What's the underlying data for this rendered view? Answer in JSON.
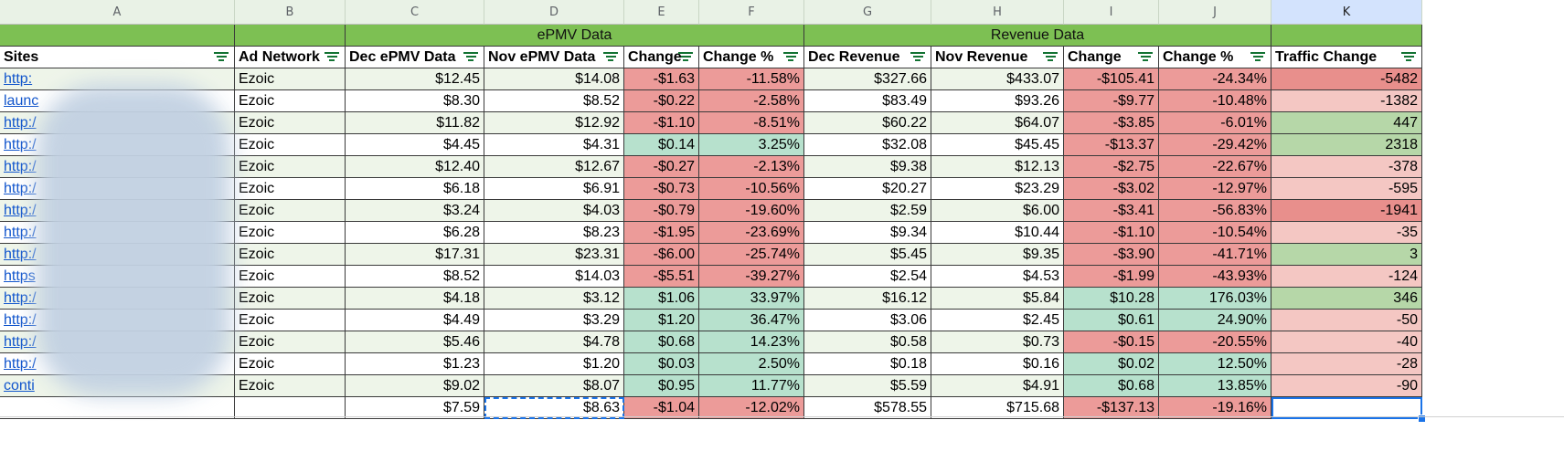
{
  "columns": [
    "A",
    "B",
    "C",
    "D",
    "E",
    "F",
    "G",
    "H",
    "I",
    "J",
    "K"
  ],
  "group_headers": {
    "epmv": "ePMV Data",
    "revenue": "Revenue Data"
  },
  "headers": [
    "Sites",
    "Ad Network",
    "Dec ePMV Data",
    "Nov ePMV Data",
    "Change",
    "Change %",
    "Dec Revenue",
    "Nov Revenue",
    "Change",
    "Change %",
    "Traffic Change"
  ],
  "rows": [
    {
      "site": "http:",
      "network": "Ezoic",
      "dec_epmv": "$12.45",
      "nov_epmv": "$14.08",
      "change": "-$1.63",
      "change_pct": "-11.58%",
      "dec_rev": "$327.66",
      "nov_rev": "$433.07",
      "rev_change": "-$105.41",
      "rev_change_pct": "-24.34%",
      "traffic": "-5482"
    },
    {
      "site": "launc",
      "network": "Ezoic",
      "dec_epmv": "$8.30",
      "nov_epmv": "$8.52",
      "change": "-$0.22",
      "change_pct": "-2.58%",
      "dec_rev": "$83.49",
      "nov_rev": "$93.26",
      "rev_change": "-$9.77",
      "rev_change_pct": "-10.48%",
      "traffic": "-1382"
    },
    {
      "site": "http:/",
      "network": "Ezoic",
      "dec_epmv": "$11.82",
      "nov_epmv": "$12.92",
      "change": "-$1.10",
      "change_pct": "-8.51%",
      "dec_rev": "$60.22",
      "nov_rev": "$64.07",
      "rev_change": "-$3.85",
      "rev_change_pct": "-6.01%",
      "traffic": "447"
    },
    {
      "site": "http:/",
      "network": "Ezoic",
      "dec_epmv": "$4.45",
      "nov_epmv": "$4.31",
      "change": "$0.14",
      "change_pct": "3.25%",
      "dec_rev": "$32.08",
      "nov_rev": "$45.45",
      "rev_change": "-$13.37",
      "rev_change_pct": "-29.42%",
      "traffic": "2318"
    },
    {
      "site": "http:/",
      "network": "Ezoic",
      "dec_epmv": "$12.40",
      "nov_epmv": "$12.67",
      "change": "-$0.27",
      "change_pct": "-2.13%",
      "dec_rev": "$9.38",
      "nov_rev": "$12.13",
      "rev_change": "-$2.75",
      "rev_change_pct": "-22.67%",
      "traffic": "-378"
    },
    {
      "site": "http:/",
      "network": "Ezoic",
      "dec_epmv": "$6.18",
      "nov_epmv": "$6.91",
      "change": "-$0.73",
      "change_pct": "-10.56%",
      "dec_rev": "$20.27",
      "nov_rev": "$23.29",
      "rev_change": "-$3.02",
      "rev_change_pct": "-12.97%",
      "traffic": "-595"
    },
    {
      "site": "http:/",
      "network": "Ezoic",
      "dec_epmv": "$3.24",
      "nov_epmv": "$4.03",
      "change": "-$0.79",
      "change_pct": "-19.60%",
      "dec_rev": "$2.59",
      "nov_rev": "$6.00",
      "rev_change": "-$3.41",
      "rev_change_pct": "-56.83%",
      "traffic": "-1941"
    },
    {
      "site": "http:/",
      "network": "Ezoic",
      "dec_epmv": "$6.28",
      "nov_epmv": "$8.23",
      "change": "-$1.95",
      "change_pct": "-23.69%",
      "dec_rev": "$9.34",
      "nov_rev": "$10.44",
      "rev_change": "-$1.10",
      "rev_change_pct": "-10.54%",
      "traffic": "-35"
    },
    {
      "site": "http:/",
      "network": "Ezoic",
      "dec_epmv": "$17.31",
      "nov_epmv": "$23.31",
      "change": "-$6.00",
      "change_pct": "-25.74%",
      "dec_rev": "$5.45",
      "nov_rev": "$9.35",
      "rev_change": "-$3.90",
      "rev_change_pct": "-41.71%",
      "traffic": "3"
    },
    {
      "site": "https",
      "network": "Ezoic",
      "dec_epmv": "$8.52",
      "nov_epmv": "$14.03",
      "change": "-$5.51",
      "change_pct": "-39.27%",
      "dec_rev": "$2.54",
      "nov_rev": "$4.53",
      "rev_change": "-$1.99",
      "rev_change_pct": "-43.93%",
      "traffic": "-124"
    },
    {
      "site": "http:/",
      "network": "Ezoic",
      "dec_epmv": "$4.18",
      "nov_epmv": "$3.12",
      "change": "$1.06",
      "change_pct": "33.97%",
      "dec_rev": "$16.12",
      "nov_rev": "$5.84",
      "rev_change": "$10.28",
      "rev_change_pct": "176.03%",
      "traffic": "346"
    },
    {
      "site": "http:/",
      "network": "Ezoic",
      "dec_epmv": "$4.49",
      "nov_epmv": "$3.29",
      "change": "$1.20",
      "change_pct": "36.47%",
      "dec_rev": "$3.06",
      "nov_rev": "$2.45",
      "rev_change": "$0.61",
      "rev_change_pct": "24.90%",
      "traffic": "-50"
    },
    {
      "site": "http:/",
      "network": "Ezoic",
      "dec_epmv": "$5.46",
      "nov_epmv": "$4.78",
      "change": "$0.68",
      "change_pct": "14.23%",
      "dec_rev": "$0.58",
      "nov_rev": "$0.73",
      "rev_change": "-$0.15",
      "rev_change_pct": "-20.55%",
      "traffic": "-40"
    },
    {
      "site": "http:/",
      "network": "Ezoic",
      "dec_epmv": "$1.23",
      "nov_epmv": "$1.20",
      "change": "$0.03",
      "change_pct": "2.50%",
      "dec_rev": "$0.18",
      "nov_rev": "$0.16",
      "rev_change": "$0.02",
      "rev_change_pct": "12.50%",
      "traffic": "-28"
    },
    {
      "site": "conti",
      "network": "Ezoic",
      "dec_epmv": "$9.02",
      "nov_epmv": "$8.07",
      "change": "$0.95",
      "change_pct": "11.77%",
      "dec_rev": "$5.59",
      "nov_rev": "$4.91",
      "rev_change": "$0.68",
      "rev_change_pct": "13.85%",
      "traffic": "-90"
    }
  ],
  "totals": {
    "dec_epmv": "$7.59",
    "nov_epmv": "$8.63",
    "change": "-$1.04",
    "change_pct": "-12.02%",
    "dec_rev": "$578.55",
    "nov_rev": "$715.68",
    "rev_change": "-$137.13",
    "rev_change_pct": "-19.16%",
    "traffic": ""
  },
  "colors": {
    "group_header": "#7dc053",
    "row_band": "#eef5e9",
    "negative": "#ec9b99",
    "positive": "#b7e1cd",
    "traffic_light_negative": "#f4c7c3",
    "traffic_strong_negative": "#e88f8c",
    "traffic_positive": "#b6d7a8",
    "link": "#1155cc",
    "selection": "#1a73e8"
  },
  "icons": {
    "filter": "filter-icon"
  }
}
